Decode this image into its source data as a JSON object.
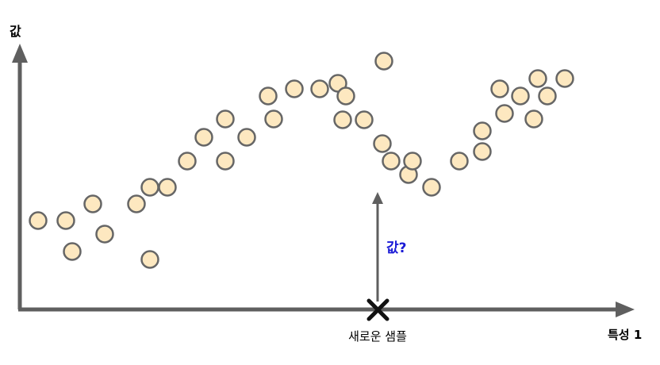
{
  "labels": {
    "y_axis": "값",
    "x_axis": "특성 1",
    "new_sample": "새로운 샘플",
    "query": "값?"
  },
  "colors": {
    "axis": "#5f5f5f",
    "point_fill": "#fde8c0",
    "point_stroke": "#666666",
    "query": "#1a1ad6",
    "cross": "#111111"
  },
  "chart_data": {
    "type": "scatter",
    "title": "",
    "xlabel": "특성 1",
    "ylabel": "값",
    "grid": false,
    "points": [
      [
        48,
        278
      ],
      [
        83,
        278
      ],
      [
        91,
        317
      ],
      [
        117,
        257
      ],
      [
        132,
        295
      ],
      [
        172,
        257
      ],
      [
        189,
        236
      ],
      [
        189,
        327
      ],
      [
        211,
        236
      ],
      [
        236,
        203
      ],
      [
        257,
        173
      ],
      [
        284,
        203
      ],
      [
        284,
        150
      ],
      [
        311,
        173
      ],
      [
        338,
        121
      ],
      [
        345,
        150
      ],
      [
        371,
        112
      ],
      [
        403,
        112
      ],
      [
        426,
        105
      ],
      [
        436,
        121
      ],
      [
        432,
        151
      ],
      [
        459,
        151
      ],
      [
        484,
        77
      ],
      [
        482,
        181
      ],
      [
        493,
        203
      ],
      [
        515,
        220
      ],
      [
        520,
        203
      ],
      [
        544,
        236
      ],
      [
        579,
        203
      ],
      [
        608,
        191
      ],
      [
        608,
        165
      ],
      [
        630,
        112
      ],
      [
        656,
        121
      ],
      [
        636,
        143
      ],
      [
        678,
        99
      ],
      [
        690,
        121
      ],
      [
        712,
        99
      ],
      [
        673,
        150
      ]
    ],
    "new_sample_x": 476
  }
}
